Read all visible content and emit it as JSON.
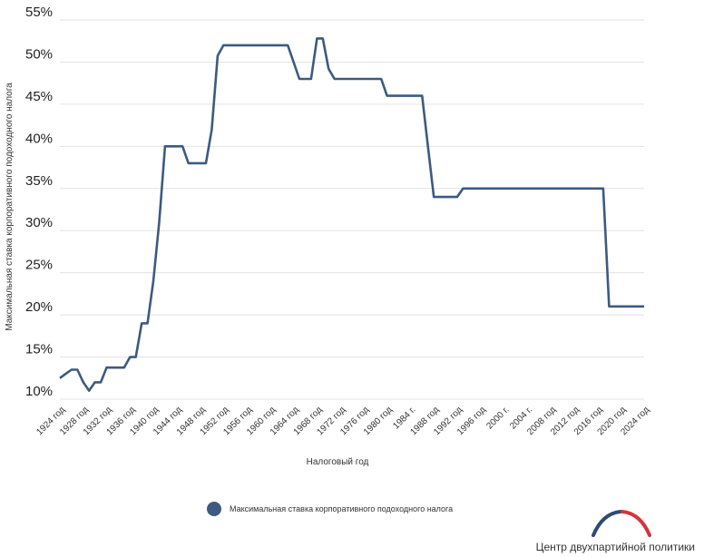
{
  "chart_data": {
    "type": "line",
    "xlabel": "Налоговый год",
    "ylabel": "Максимальная ставка корпоративного подоходного налога",
    "ylim": [
      10,
      55
    ],
    "yticks": [
      "10%",
      "15%",
      "20%",
      "25%",
      "30%",
      "35%",
      "40%",
      "45%",
      "50%",
      "55%"
    ],
    "x_tick_labels": [
      "1924 год",
      "1928 год",
      "1932 год",
      "1936 год",
      "1940 год",
      "1944 год",
      "1948 год",
      "1952 год",
      "1956 год",
      "1960 год",
      "1964 год",
      "1968 год",
      "1972 год",
      "1976 год",
      "1980 год",
      "1984 г.",
      "1988 год",
      "1992 год",
      "1996 год",
      "2000 г.",
      "2004 г.",
      "2008 год",
      "2012 год",
      "2016 год",
      "2020 год",
      "2024 год"
    ],
    "xlim": [
      1924,
      2024
    ],
    "grid": true,
    "color": "#3d5a80",
    "series": [
      {
        "name": "Максимальная ставка корпоративного подоходного налога",
        "x": [
          1924,
          1925,
          1926,
          1927,
          1928,
          1929,
          1930,
          1931,
          1932,
          1933,
          1934,
          1935,
          1936,
          1937,
          1938,
          1939,
          1940,
          1941,
          1942,
          1943,
          1944,
          1945,
          1946,
          1947,
          1948,
          1949,
          1950,
          1951,
          1952,
          1953,
          1954,
          1955,
          1956,
          1957,
          1958,
          1959,
          1960,
          1961,
          1962,
          1963,
          1964,
          1965,
          1966,
          1967,
          1968,
          1969,
          1970,
          1971,
          1972,
          1973,
          1974,
          1975,
          1976,
          1977,
          1978,
          1979,
          1980,
          1981,
          1982,
          1983,
          1984,
          1985,
          1986,
          1987,
          1988,
          1989,
          1990,
          1991,
          1992,
          1993,
          1994,
          1995,
          1996,
          1997,
          1998,
          1999,
          2000,
          2001,
          2002,
          2003,
          2004,
          2005,
          2006,
          2007,
          2008,
          2009,
          2010,
          2011,
          2012,
          2013,
          2014,
          2015,
          2016,
          2017,
          2018,
          2019,
          2020,
          2021,
          2022,
          2023,
          2024
        ],
        "values": [
          12.5,
          13,
          13.5,
          13.5,
          12,
          11,
          12,
          12,
          13.75,
          13.75,
          13.75,
          13.75,
          15,
          15,
          19,
          19,
          24,
          31,
          40,
          40,
          40,
          40,
          38,
          38,
          38,
          38,
          42,
          50.75,
          52,
          52,
          52,
          52,
          52,
          52,
          52,
          52,
          52,
          52,
          52,
          52,
          50,
          48,
          48,
          48,
          52.8,
          52.8,
          49.2,
          48,
          48,
          48,
          48,
          48,
          48,
          48,
          48,
          48,
          46,
          46,
          46,
          46,
          46,
          46,
          46,
          40,
          34,
          34,
          34,
          34,
          34,
          35,
          35,
          35,
          35,
          35,
          35,
          35,
          35,
          35,
          35,
          35,
          35,
          35,
          35,
          35,
          35,
          35,
          35,
          35,
          35,
          35,
          35,
          35,
          35,
          35,
          21,
          21,
          21,
          21,
          21,
          21,
          21
        ]
      }
    ]
  },
  "source": "Центр двухпартийной политики"
}
